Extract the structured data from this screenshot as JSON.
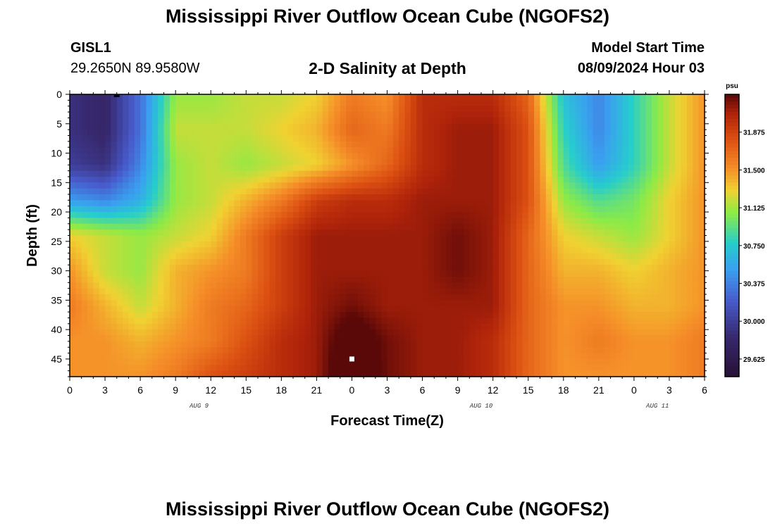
{
  "header": {
    "title": "Mississippi River Outflow Ocean Cube (NGOFS2)",
    "station": "GISL1",
    "coordinates": "29.2650N  89.9580W",
    "subtitle": "2-D Salinity at Depth",
    "model_start_label": "Model Start Time",
    "model_start_value": "08/09/2024 Hour 03"
  },
  "footer": {
    "title": "Mississippi River Outflow Ocean Cube (NGOFS2)"
  },
  "chart_data": {
    "type": "heatmap",
    "title": "2-D Salinity at Depth",
    "xlabel": "Forecast Time(Z)",
    "ylabel": "Depth (ft)",
    "x_hours": [
      0,
      3,
      6,
      9,
      12,
      15,
      18,
      21,
      24,
      27,
      30,
      33,
      36,
      39,
      42,
      45,
      48,
      51,
      54
    ],
    "xtick_labels": [
      "0",
      "3",
      "6",
      "9",
      "12",
      "15",
      "18",
      "21",
      "0",
      "3",
      "6",
      "9",
      "12",
      "15",
      "18",
      "21",
      "0",
      "3",
      "6"
    ],
    "day_labels": [
      {
        "hour": 11,
        "text": "AUG 9"
      },
      {
        "hour": 35,
        "text": "AUG 10"
      },
      {
        "hour": 50,
        "text": "AUG 11"
      }
    ],
    "xlim": [
      0,
      54
    ],
    "depth_ft": [
      0,
      6,
      12,
      18,
      24,
      30,
      36,
      42,
      48
    ],
    "ytick_labels": [
      "0",
      "5",
      "10",
      "15",
      "20",
      "25",
      "30",
      "35",
      "40",
      "45"
    ],
    "ylim": [
      0,
      48
    ],
    "z_units": "psu",
    "salinity_psu": [
      [
        29.9,
        29.8,
        30.3,
        31.1,
        31.1,
        31.2,
        31.2,
        31.3,
        31.6,
        31.5,
        32.0,
        32.0,
        32.0,
        31.7,
        30.7,
        30.4,
        30.8,
        31.2,
        31.5
      ],
      [
        29.9,
        29.8,
        30.3,
        31.2,
        31.2,
        31.2,
        31.3,
        31.4,
        31.7,
        31.6,
        32.0,
        32.1,
        32.1,
        31.8,
        30.8,
        30.4,
        30.8,
        31.2,
        31.5
      ],
      [
        30.0,
        29.9,
        30.4,
        31.1,
        31.2,
        31.1,
        31.2,
        31.3,
        31.5,
        31.7,
        32.0,
        32.1,
        32.1,
        31.8,
        30.9,
        30.5,
        30.8,
        31.2,
        31.5
      ],
      [
        30.5,
        30.4,
        30.6,
        31.1,
        31.2,
        31.4,
        31.6,
        31.9,
        32.0,
        32.0,
        32.1,
        32.1,
        32.1,
        31.8,
        31.1,
        30.9,
        31.0,
        31.3,
        31.5
      ],
      [
        31.3,
        31.2,
        31.1,
        31.2,
        31.3,
        31.6,
        31.9,
        32.1,
        32.1,
        32.1,
        32.1,
        32.2,
        32.1,
        31.7,
        31.3,
        31.2,
        31.1,
        31.3,
        31.5
      ],
      [
        31.5,
        31.2,
        31.1,
        31.4,
        31.5,
        31.6,
        31.9,
        32.1,
        32.1,
        32.1,
        32.1,
        32.2,
        32.1,
        31.7,
        31.4,
        31.4,
        31.3,
        31.4,
        31.5
      ],
      [
        31.6,
        31.4,
        31.2,
        31.4,
        31.6,
        31.7,
        31.9,
        32.1,
        32.2,
        32.1,
        32.1,
        32.1,
        32.1,
        31.7,
        31.5,
        31.5,
        31.4,
        31.4,
        31.5
      ],
      [
        31.5,
        31.5,
        31.4,
        31.5,
        31.6,
        31.8,
        32.0,
        32.1,
        32.4,
        32.2,
        32.1,
        32.1,
        32.0,
        31.7,
        31.5,
        31.6,
        31.5,
        31.5,
        31.6
      ],
      [
        31.5,
        31.5,
        31.5,
        31.6,
        31.8,
        31.9,
        32.0,
        32.1,
        32.5,
        32.2,
        32.1,
        32.1,
        32.0,
        31.7,
        31.5,
        31.5,
        31.5,
        31.5,
        31.6
      ]
    ],
    "markers": [
      {
        "hour": 4,
        "depth": 0,
        "color": "#000000",
        "shape": "dash"
      },
      {
        "hour": 24,
        "depth": 45,
        "color": "#ffffff",
        "shape": "square"
      }
    ],
    "colorbar": {
      "label": "psu",
      "min": 29.45,
      "max": 32.25,
      "ticks": [
        29.625,
        30.0,
        30.375,
        30.75,
        31.125,
        31.5,
        31.875
      ],
      "tick_labels": [
        "29.625",
        "30.000",
        "30.375",
        "30.750",
        "31.125",
        "31.500",
        "31.875"
      ]
    }
  }
}
